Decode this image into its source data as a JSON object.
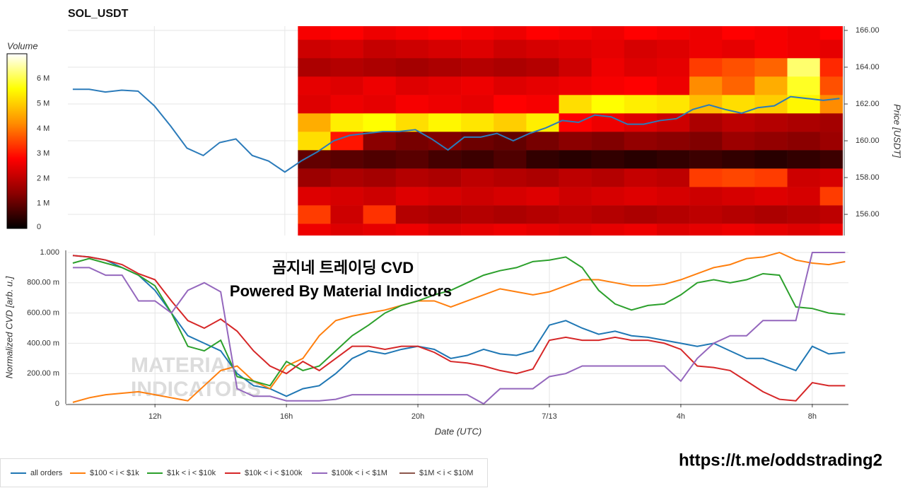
{
  "chart_data": [
    {
      "type": "heatmap",
      "title": "SOL_USDT",
      "y_label": "Price [USDT]",
      "colorbar_title": "Volume",
      "ylim": [
        154.85,
        166.23
      ],
      "yticks": [
        {
          "value": 156,
          "label": "156.00"
        },
        {
          "value": 158,
          "label": "158.00"
        },
        {
          "value": 160,
          "label": "160.00"
        },
        {
          "value": 162,
          "label": "162.00"
        },
        {
          "value": 164,
          "label": "164.00"
        },
        {
          "value": 166,
          "label": "166.00"
        }
      ],
      "zlim": [
        0,
        7
      ],
      "zticks": [
        0,
        {
          "value": 1,
          "label": "1 M"
        },
        {
          "value": 2,
          "label": "2 M"
        },
        {
          "value": 3,
          "label": "3 M"
        },
        {
          "value": 4,
          "label": "4 M"
        },
        {
          "value": 5,
          "label": "5 M"
        },
        {
          "value": 6,
          "label": "6 M"
        }
      ],
      "colorscale": [
        "#000000",
        "#8b0000",
        "#ff0000",
        "#ff8c00",
        "#ffff00",
        "#ffffff"
      ],
      "xbins": [
        16.4,
        17.4,
        18.4,
        19.4,
        20.4,
        21.4,
        22.4,
        23.4,
        24.4,
        25.4,
        26.4,
        27.4,
        28.4,
        29.4,
        30.4,
        31.4,
        32.4,
        33.1
      ],
      "ybins": [
        154.5,
        155.5,
        156.5,
        157.5,
        158.5,
        159.5,
        160.5,
        161.5,
        162.5,
        163.5,
        164.5,
        165.5,
        166.5
      ],
      "z": [
        [
          2.6,
          2.4,
          2.5,
          2.6,
          2.4,
          2.5,
          2.6,
          2.5,
          2.4,
          2.5,
          2.6,
          2.4,
          2.5,
          2.6,
          2.5,
          2.4,
          2.6
        ],
        [
          3.4,
          2.2,
          3.3,
          1.9,
          1.8,
          1.9,
          1.8,
          1.9,
          2.0,
          1.9,
          1.8,
          1.9,
          2.0,
          1.9,
          1.8,
          1.9,
          2.0
        ],
        [
          2.4,
          2.3,
          2.2,
          2.4,
          2.3,
          2.2,
          2.3,
          2.4,
          2.2,
          2.3,
          2.4,
          2.3,
          2.2,
          2.3,
          2.4,
          2.3,
          3.4
        ],
        [
          1.6,
          1.8,
          1.7,
          1.9,
          1.8,
          2.0,
          1.9,
          1.8,
          2.0,
          1.9,
          2.1,
          2.0,
          3.4,
          3.5,
          3.4,
          2.2,
          2.3
        ],
        [
          1.0,
          0.9,
          0.8,
          0.9,
          0.7,
          0.6,
          0.8,
          0.5,
          0.4,
          0.5,
          0.4,
          0.5,
          0.6,
          0.5,
          0.4,
          0.5,
          0.6
        ],
        [
          5.2,
          3.0,
          1.4,
          1.2,
          1.3,
          1.1,
          1.0,
          1.2,
          1.4,
          1.3,
          1.5,
          1.4,
          1.3,
          1.6,
          1.5,
          1.4,
          1.6
        ],
        [
          4.6,
          5.4,
          5.6,
          5.2,
          5.5,
          5.3,
          5.0,
          5.4,
          2.8,
          2.6,
          2.4,
          2.2,
          1.8,
          2.0,
          1.9,
          1.8,
          1.7
        ],
        [
          2.4,
          2.6,
          2.5,
          2.7,
          2.6,
          2.5,
          2.8,
          2.7,
          5.2,
          5.6,
          5.4,
          5.3,
          4.8,
          5.2,
          5.0,
          5.5,
          4.2
        ],
        [
          2.5,
          2.4,
          2.6,
          2.4,
          2.5,
          2.6,
          2.4,
          2.5,
          2.6,
          2.7,
          2.8,
          2.6,
          4.2,
          3.8,
          4.6,
          5.8,
          3.6
        ],
        [
          1.8,
          1.9,
          1.8,
          1.7,
          1.8,
          1.9,
          1.8,
          1.9,
          2.2,
          2.6,
          2.4,
          2.5,
          3.4,
          3.6,
          3.8,
          6.2,
          3.2
        ],
        [
          2.2,
          2.3,
          2.1,
          2.2,
          2.3,
          2.4,
          2.2,
          2.3,
          2.4,
          2.5,
          2.3,
          2.4,
          2.6,
          2.5,
          2.7,
          2.6,
          2.5
        ],
        [
          2.7,
          2.8,
          2.6,
          2.7,
          2.8,
          2.7,
          2.6,
          2.8,
          2.7,
          2.6,
          2.8,
          2.7,
          2.6,
          2.8,
          2.7,
          2.6,
          2.8
        ]
      ],
      "color": "#2b7bba",
      "x": [
        9.5,
        10,
        10.5,
        11,
        11.5,
        12,
        12.5,
        13,
        13.5,
        14,
        14.5,
        15,
        15.5,
        16,
        16.5,
        17,
        17.5,
        18,
        18.5,
        19,
        19.5,
        20,
        20.5,
        21,
        21.5,
        22,
        22.5,
        23,
        23.5,
        24,
        24.5,
        25,
        25.5,
        26,
        26.5,
        27,
        27.5,
        28,
        28.5,
        29,
        29.5,
        30,
        30.5,
        31,
        31.5,
        32,
        32.5,
        33
      ],
      "values": [
        162.8,
        162.8,
        162.65,
        162.75,
        162.7,
        161.9,
        160.8,
        159.6,
        159.2,
        159.9,
        160.1,
        159.2,
        158.9,
        158.3,
        158.9,
        159.4,
        160.0,
        160.3,
        160.4,
        160.5,
        160.5,
        160.6,
        160.1,
        159.5,
        160.2,
        160.2,
        160.4,
        160.0,
        160.4,
        160.7,
        161.1,
        161.0,
        161.4,
        161.3,
        160.9,
        160.9,
        161.1,
        161.2,
        161.7,
        161.95,
        161.7,
        161.5,
        161.8,
        161.9,
        162.4,
        162.3,
        162.2,
        162.3
      ]
    },
    {
      "type": "line",
      "x_label": "Date (UTC)",
      "y_label": "Normalized CVD [arb. u.]",
      "grid": true,
      "xlim": [
        9.35,
        33.1
      ],
      "xticks": [
        {
          "value": 12,
          "label": "12h"
        },
        {
          "value": 16,
          "label": "16h"
        },
        {
          "value": 20,
          "label": "20h"
        },
        {
          "value": 24,
          "label": "7/13"
        },
        {
          "value": 28,
          "label": "4h"
        },
        {
          "value": 32,
          "label": "8h"
        }
      ],
      "ylim": [
        0,
        1
      ],
      "yticks": [
        0,
        {
          "value": 0.2,
          "label": "200.00 m"
        },
        {
          "value": 0.4,
          "label": "400.00 m"
        },
        {
          "value": 0.6,
          "label": "600.00 m"
        },
        {
          "value": 0.8,
          "label": "800.00 m"
        },
        {
          "value": 1,
          "label": "1.000"
        }
      ],
      "x": [
        9.5,
        10,
        10.5,
        11,
        11.5,
        12,
        12.5,
        13,
        13.5,
        14,
        14.5,
        15,
        15.5,
        16,
        16.5,
        17,
        17.5,
        18,
        18.5,
        19,
        19.5,
        20,
        20.5,
        21,
        21.5,
        22,
        22.5,
        23,
        23.5,
        24,
        24.5,
        25,
        25.5,
        26,
        26.5,
        27,
        27.5,
        28,
        28.5,
        29,
        29.5,
        30,
        30.5,
        31,
        31.5,
        32,
        32.5,
        33
      ],
      "series": [
        {
          "name": "all orders",
          "color": "#1f77b4",
          "values": [
            0.98,
            0.97,
            0.95,
            0.9,
            0.85,
            0.75,
            0.6,
            0.45,
            0.4,
            0.35,
            0.2,
            0.12,
            0.1,
            0.05,
            0.1,
            0.12,
            0.2,
            0.3,
            0.35,
            0.33,
            0.36,
            0.38,
            0.36,
            0.3,
            0.32,
            0.36,
            0.33,
            0.32,
            0.35,
            0.52,
            0.55,
            0.5,
            0.46,
            0.48,
            0.45,
            0.44,
            0.42,
            0.4,
            0.38,
            0.4,
            0.35,
            0.3,
            0.3,
            0.26,
            0.22,
            0.38,
            0.33,
            0.34
          ]
        },
        {
          "name": "$100 < i < $1k",
          "color": "#ff7f0e",
          "values": [
            0.01,
            0.04,
            0.06,
            0.07,
            0.08,
            0.06,
            0.04,
            0.02,
            0.12,
            0.22,
            0.25,
            0.15,
            0.1,
            0.25,
            0.3,
            0.45,
            0.55,
            0.58,
            0.6,
            0.62,
            0.65,
            0.68,
            0.68,
            0.64,
            0.68,
            0.72,
            0.76,
            0.74,
            0.72,
            0.74,
            0.78,
            0.82,
            0.82,
            0.8,
            0.78,
            0.78,
            0.79,
            0.82,
            0.86,
            0.9,
            0.92,
            0.96,
            0.97,
            1.0,
            0.95,
            0.93,
            0.92,
            0.94
          ]
        },
        {
          "name": "$1k < i < $10k",
          "color": "#2ca02c",
          "values": [
            0.93,
            0.96,
            0.93,
            0.9,
            0.85,
            0.78,
            0.6,
            0.38,
            0.35,
            0.42,
            0.18,
            0.15,
            0.12,
            0.28,
            0.22,
            0.25,
            0.35,
            0.45,
            0.52,
            0.6,
            0.65,
            0.68,
            0.72,
            0.75,
            0.8,
            0.85,
            0.88,
            0.9,
            0.94,
            0.95,
            0.97,
            0.9,
            0.75,
            0.66,
            0.62,
            0.65,
            0.66,
            0.72,
            0.8,
            0.82,
            0.8,
            0.82,
            0.86,
            0.85,
            0.64,
            0.63,
            0.6,
            0.59
          ]
        },
        {
          "name": "$10k < i < $100k",
          "color": "#d62728",
          "values": [
            0.98,
            0.97,
            0.95,
            0.92,
            0.86,
            0.82,
            0.68,
            0.55,
            0.5,
            0.56,
            0.48,
            0.35,
            0.25,
            0.2,
            0.28,
            0.22,
            0.3,
            0.38,
            0.38,
            0.36,
            0.38,
            0.38,
            0.34,
            0.28,
            0.27,
            0.25,
            0.22,
            0.2,
            0.23,
            0.42,
            0.44,
            0.42,
            0.42,
            0.44,
            0.42,
            0.42,
            0.4,
            0.36,
            0.25,
            0.24,
            0.22,
            0.15,
            0.08,
            0.03,
            0.02,
            0.14,
            0.12,
            0.12
          ]
        },
        {
          "name": "$100k < i < $1M",
          "color": "#9467bd",
          "values": [
            0.9,
            0.9,
            0.85,
            0.85,
            0.68,
            0.68,
            0.6,
            0.75,
            0.8,
            0.74,
            0.1,
            0.05,
            0.05,
            0.02,
            0.02,
            0.02,
            0.03,
            0.06,
            0.06,
            0.06,
            0.06,
            0.06,
            0.06,
            0.06,
            0.06,
            0.0,
            0.1,
            0.1,
            0.1,
            0.18,
            0.2,
            0.25,
            0.25,
            0.25,
            0.25,
            0.25,
            0.25,
            0.15,
            0.3,
            0.4,
            0.45,
            0.45,
            0.55,
            0.55,
            0.55,
            1.0,
            1.0,
            1.0
          ]
        },
        {
          "name": "$1M < i < $10M",
          "color": "#8c564b",
          "values": [
            null,
            null,
            null,
            null,
            null,
            null,
            null,
            null,
            null,
            null,
            null,
            null,
            null,
            null,
            null,
            null,
            null,
            null,
            null,
            null,
            null,
            null,
            null,
            null,
            null,
            null,
            null,
            null,
            null,
            null,
            null,
            null,
            null,
            null,
            null,
            null,
            null,
            null,
            null,
            null,
            null,
            null,
            null,
            null,
            null,
            null,
            null,
            null
          ]
        }
      ]
    }
  ],
  "annotations": [
    "곰지네 트레이딩 CVD",
    "Powered By Material Indictors"
  ],
  "watermark": [
    "MATERIAL",
    "INDICATORS"
  ],
  "link": "https://t.me/oddstrading2"
}
